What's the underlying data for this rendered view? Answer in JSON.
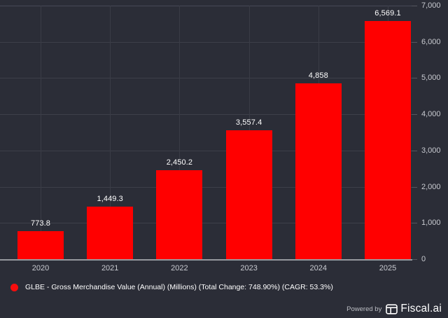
{
  "chart_data": {
    "type": "bar",
    "title": "",
    "series_name": "GLBE - Gross Merchandise Value (Annual) (Millions)",
    "categories": [
      "2020",
      "2021",
      "2022",
      "2023",
      "2024",
      "2025"
    ],
    "values": [
      773.8,
      1449.3,
      2450.2,
      3557.4,
      4858,
      6569.1
    ],
    "value_labels": [
      "773.8",
      "1,449.3",
      "2,450.2",
      "3,557.4",
      "4,858",
      "6,569.1"
    ],
    "xlabel": "",
    "ylabel": "",
    "ylim": [
      0,
      7000
    ],
    "yticks": [
      {
        "value": 0,
        "label": "0"
      },
      {
        "value": 1000,
        "label": "1,000"
      },
      {
        "value": 2000,
        "label": "2,000"
      },
      {
        "value": 3000,
        "label": "3,000"
      },
      {
        "value": 4000,
        "label": "4,000"
      },
      {
        "value": 5000,
        "label": "5,000"
      },
      {
        "value": 6000,
        "label": "6,000"
      },
      {
        "value": 7000,
        "label": "7,000"
      }
    ],
    "grid": true,
    "y_axis_side": "right",
    "legend_position": "bottom-left",
    "total_change": "748.90%",
    "cagr": "53.3%"
  },
  "legend": {
    "label": "GLBE - Gross Merchandise Value (Annual) (Millions) (Total Change: 748.90%) (CAGR: 53.3%)",
    "marker_color": "#f70d0d"
  },
  "footer": {
    "powered_by": "Powered by",
    "brand": "Fiscal.ai"
  },
  "colors": {
    "background": "#2b2d37",
    "bar": "#ff0000",
    "gridline": "#3d3f49",
    "axis_line": "#96989e",
    "tick_text": "#c9cbd1",
    "value_text": "#ffffff"
  }
}
